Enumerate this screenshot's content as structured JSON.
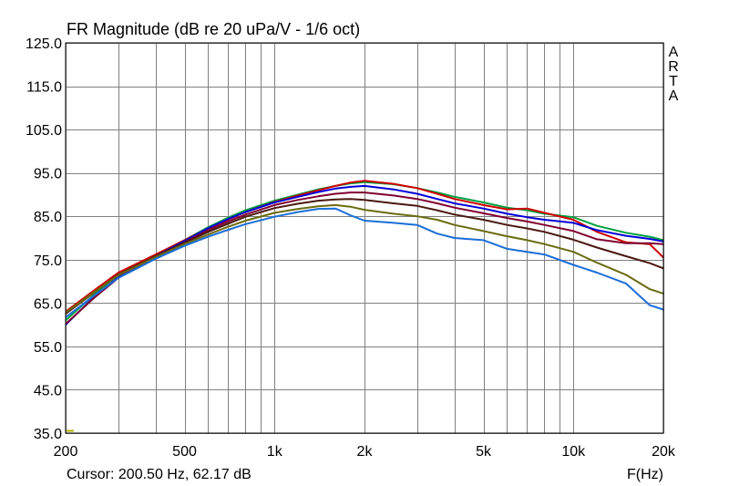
{
  "chart_data": {
    "type": "line",
    "title": "FR Magnitude (dB re 20 uPa/V - 1/6 oct)",
    "xlabel": "F(Hz)",
    "ylabel": "",
    "brand": "ARTA",
    "cursor_text": "Cursor: 200.50 Hz, 62.17 dB",
    "x_scale": "log",
    "xlim": [
      200,
      20000
    ],
    "ylim": [
      35,
      125
    ],
    "grid": true,
    "x_ticks": [
      200,
      500,
      1000,
      2000,
      5000,
      10000,
      20000
    ],
    "x_tick_labels": [
      "200",
      "500",
      "1k",
      "2k",
      "5k",
      "10k",
      "20k"
    ],
    "y_ticks": [
      35,
      45,
      55,
      65,
      75,
      85,
      95,
      105,
      115,
      125
    ],
    "y_tick_labels": [
      "35.0",
      "45.0",
      "55.0",
      "65.0",
      "75.0",
      "85.0",
      "95.0",
      "105.0",
      "115.0",
      "125.0"
    ],
    "x": [
      200,
      250,
      300,
      400,
      500,
      600,
      700,
      800,
      1000,
      1200,
      1400,
      1600,
      1800,
      2000,
      2500,
      3000,
      3500,
      4000,
      5000,
      6000,
      7000,
      8000,
      10000,
      12000,
      15000,
      18000,
      20000
    ],
    "series": [
      {
        "color": "#00a040",
        "values": [
          61.0,
          67.0,
          71.5,
          76.0,
          79.5,
          82.5,
          84.7,
          86.4,
          88.6,
          90.0,
          91.2,
          92.0,
          92.6,
          92.9,
          92.4,
          91.5,
          90.5,
          89.5,
          88.2,
          87.0,
          86.4,
          85.6,
          84.8,
          82.8,
          81.2,
          80.3,
          79.5
        ]
      },
      {
        "color": "#d00000",
        "values": [
          63.0,
          68.0,
          72.0,
          76.2,
          79.5,
          82.2,
          84.3,
          86.0,
          88.3,
          89.8,
          91.0,
          92.0,
          92.8,
          93.2,
          92.5,
          91.5,
          90.2,
          89.0,
          87.6,
          86.6,
          86.8,
          85.8,
          84.2,
          81.4,
          79.0,
          78.6,
          75.5
        ]
      },
      {
        "color": "#0000d8",
        "values": [
          60.0,
          66.5,
          71.0,
          75.8,
          79.3,
          82.3,
          84.4,
          86.0,
          88.2,
          89.5,
          90.6,
          91.4,
          91.8,
          92.0,
          91.2,
          90.2,
          89.0,
          88.0,
          86.8,
          85.6,
          84.8,
          84.2,
          83.5,
          81.8,
          80.5,
          79.8,
          79.2
        ]
      },
      {
        "color": "#800030",
        "values": [
          60.2,
          66.3,
          70.8,
          75.5,
          79.0,
          81.8,
          83.8,
          85.4,
          87.6,
          88.8,
          89.6,
          90.2,
          90.5,
          90.5,
          89.8,
          89.0,
          88.0,
          87.0,
          85.7,
          84.6,
          83.8,
          83.0,
          81.6,
          79.7,
          78.8,
          78.8,
          78.6
        ]
      },
      {
        "color": "#4a1810",
        "values": [
          62.5,
          67.5,
          71.5,
          75.8,
          78.9,
          81.4,
          83.3,
          84.9,
          86.9,
          87.9,
          88.6,
          88.9,
          89.0,
          88.8,
          88.0,
          87.4,
          86.4,
          85.4,
          84.2,
          83.0,
          82.2,
          81.4,
          79.6,
          77.8,
          75.8,
          74.2,
          73.0
        ]
      },
      {
        "color": "#6b6b10",
        "values": [
          62.8,
          67.6,
          71.4,
          75.6,
          78.6,
          80.8,
          82.6,
          84.0,
          85.8,
          86.7,
          87.3,
          87.6,
          87.2,
          86.5,
          85.6,
          85.0,
          84.2,
          83.0,
          81.6,
          80.4,
          79.5,
          78.6,
          76.8,
          74.3,
          71.5,
          68.2,
          67.2
        ]
      },
      {
        "color": "#1a6ed8",
        "values": [
          61.7,
          66.8,
          70.8,
          75.2,
          78.2,
          80.3,
          81.9,
          83.2,
          84.9,
          86.0,
          86.7,
          86.8,
          85.2,
          84.0,
          83.5,
          83.0,
          81.0,
          80.0,
          79.5,
          77.5,
          76.8,
          76.2,
          73.8,
          72.0,
          69.5,
          64.5,
          63.5
        ]
      }
    ]
  }
}
